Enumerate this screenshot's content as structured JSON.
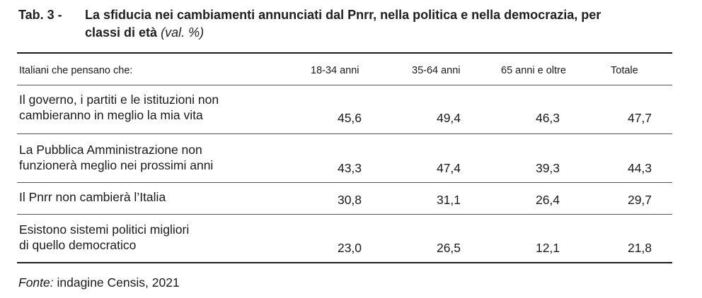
{
  "table": {
    "title_prefix": "Tab. 3 -",
    "title_line1": "La sfiducia nei cambiamenti annunciati dal Pnrr, nella politica e nella democrazia, per",
    "title_line2": "classi di età",
    "subtitle": "(val. %)",
    "header": {
      "label": "Italiani che pensano che:",
      "columns": [
        "18-34 anni",
        "35-64 anni",
        "65 anni e oltre",
        "Totale"
      ]
    },
    "rows": [
      {
        "label_line1": "Il governo, i partiti e le istituzioni non",
        "label_line2": "cambieranno in meglio la mia vita",
        "values": [
          "45,6",
          "49,4",
          "46,3",
          "47,7"
        ]
      },
      {
        "label_line1": "La Pubblica Amministrazione non",
        "label_line2": "funzionerà meglio nei prossimi anni",
        "values": [
          "43,3",
          "47,4",
          "39,3",
          "44,3"
        ]
      },
      {
        "label_line1": "Il Pnrr non cambierà l’Italia",
        "label_line2": "",
        "values": [
          "30,8",
          "31,1",
          "26,4",
          "29,7"
        ]
      },
      {
        "label_line1": "Esistono sistemi politici migliori",
        "label_line2": "di quello democratico",
        "values": [
          "23,0",
          "26,5",
          "12,1",
          "21,8"
        ]
      }
    ],
    "source_label": "Fonte:",
    "source_text": " indagine Censis, 2021"
  }
}
